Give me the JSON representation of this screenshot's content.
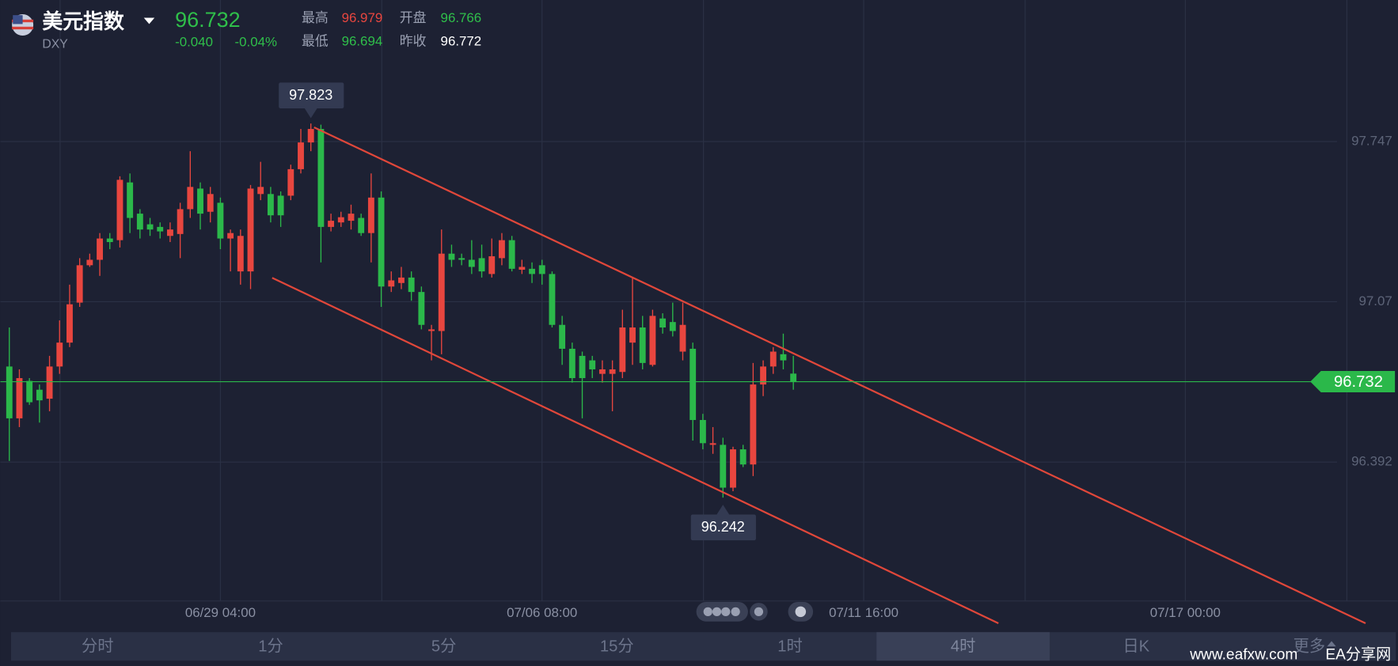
{
  "header": {
    "name": "美元指数",
    "symbol": "DXY",
    "change": "-0.040",
    "change_pct": "-0.04%",
    "high_label": "最高",
    "high": "96.979",
    "open_label": "开盘",
    "open": "96.766",
    "low_label": "最低",
    "low": "96.694",
    "prev_label": "昨收",
    "prev": "96.772"
  },
  "chart_data": {
    "type": "candlestick",
    "x": [
      0,
      1,
      2,
      3,
      4,
      5,
      6,
      7,
      8,
      9,
      10,
      11,
      12,
      13,
      14,
      15,
      16,
      17,
      18,
      19,
      20,
      21,
      22,
      23,
      24,
      25,
      26,
      27,
      28,
      29,
      30,
      31,
      32,
      33,
      34,
      35,
      36,
      37,
      38,
      39,
      40,
      41,
      42,
      43,
      44,
      45,
      46,
      47,
      48,
      49,
      50,
      51,
      52,
      53,
      54,
      55,
      56,
      57,
      58,
      59,
      60,
      61,
      62,
      63,
      64,
      65,
      66,
      67,
      68,
      69,
      70,
      71,
      72,
      73,
      74,
      75,
      76,
      77,
      78
    ],
    "open": [
      96.796,
      96.577,
      96.735,
      96.698,
      96.66,
      96.796,
      96.897,
      97.066,
      97.224,
      97.247,
      97.337,
      97.33,
      97.574,
      97.442,
      97.397,
      97.386,
      97.348,
      97.356,
      97.461,
      97.548,
      97.45,
      97.488,
      97.337,
      97.198,
      97.198,
      97.525,
      97.525,
      97.518,
      97.518,
      97.63,
      97.743,
      97.8,
      97.386,
      97.405,
      97.412,
      97.424,
      97.36,
      97.51,
      97.134,
      97.149,
      97.172,
      97.111,
      96.946,
      96.946,
      97.273,
      97.254,
      97.247,
      97.254,
      97.187,
      97.254,
      97.33,
      97.205,
      97.209,
      97.224,
      97.187,
      96.972,
      96.871,
      96.841,
      96.822,
      96.765,
      96.765,
      96.773,
      96.897,
      96.961,
      96.803,
      96.999,
      96.984,
      96.859,
      96.871,
      96.57,
      96.465,
      96.465,
      96.284,
      96.446,
      96.382,
      96.72,
      96.796,
      96.848,
      96.766
    ],
    "high": [
      96.961,
      96.784,
      96.747,
      96.72,
      96.841,
      96.991,
      97.142,
      97.254,
      97.273,
      97.36,
      97.36,
      97.6,
      97.612,
      97.461,
      97.424,
      97.405,
      97.405,
      97.488,
      97.706,
      97.574,
      97.555,
      97.51,
      97.375,
      97.375,
      97.563,
      97.661,
      97.555,
      97.536,
      97.649,
      97.8,
      97.823,
      97.818,
      97.442,
      97.45,
      97.48,
      97.442,
      97.612,
      97.536,
      97.198,
      97.217,
      97.198,
      97.134,
      96.972,
      97.375,
      97.311,
      97.273,
      97.33,
      97.311,
      97.337,
      97.36,
      97.348,
      97.247,
      97.236,
      97.247,
      97.198,
      97.01,
      96.897,
      96.859,
      96.841,
      96.822,
      96.822,
      97.036,
      97.172,
      97.01,
      97.036,
      97.021,
      97.066,
      97.066,
      96.897,
      96.596,
      96.54,
      96.495,
      96.457,
      96.465,
      96.811,
      96.822,
      96.878,
      96.935,
      96.841
    ],
    "low": [
      96.397,
      96.54,
      96.634,
      96.559,
      96.607,
      96.765,
      96.878,
      97.048,
      97.217,
      97.179,
      97.292,
      97.299,
      97.36,
      97.337,
      97.348,
      97.337,
      97.322,
      97.254,
      97.424,
      97.375,
      97.405,
      97.292,
      97.198,
      97.142,
      97.123,
      97.499,
      97.405,
      97.386,
      97.499,
      97.612,
      97.706,
      97.236,
      97.367,
      97.386,
      97.375,
      97.348,
      97.236,
      97.048,
      97.111,
      97.123,
      97.074,
      96.953,
      96.822,
      96.848,
      97.217,
      97.224,
      97.187,
      97.172,
      97.172,
      97.224,
      97.198,
      97.187,
      97.149,
      97.142,
      96.961,
      96.803,
      96.728,
      96.577,
      96.747,
      96.728,
      96.607,
      96.747,
      96.803,
      96.784,
      96.796,
      96.935,
      96.923,
      96.822,
      96.483,
      96.446,
      96.427,
      96.242,
      96.269,
      96.371,
      96.333,
      96.671,
      96.765,
      96.784,
      96.698
    ],
    "close": [
      96.577,
      96.747,
      96.645,
      96.653,
      96.796,
      96.897,
      97.059,
      97.224,
      97.247,
      97.337,
      97.322,
      97.585,
      97.424,
      97.375,
      97.375,
      97.367,
      97.375,
      97.461,
      97.555,
      97.442,
      97.525,
      97.337,
      97.36,
      97.348,
      97.548,
      97.555,
      97.435,
      97.435,
      97.63,
      97.743,
      97.8,
      97.386,
      97.412,
      97.427,
      97.442,
      97.36,
      97.51,
      97.134,
      97.16,
      97.172,
      97.111,
      96.972,
      96.953,
      97.273,
      97.247,
      97.247,
      97.217,
      97.198,
      97.262,
      97.33,
      97.209,
      97.217,
      97.187,
      97.187,
      96.972,
      96.871,
      96.747,
      96.747,
      96.784,
      96.784,
      96.784,
      96.961,
      96.961,
      96.811,
      97.01,
      96.961,
      96.946,
      96.972,
      96.57,
      96.472,
      96.472,
      96.284,
      96.446,
      96.382,
      96.72,
      96.796,
      96.859,
      96.822,
      96.732
    ],
    "up_color": "#e8463f",
    "down_color": "#2bb84a",
    "xlim": [
      -0.89,
      138.12
    ],
    "xticks": [
      {
        "value": 21,
        "label": "06/29 04:00"
      },
      {
        "value": 53,
        "label": "07/06 08:00"
      },
      {
        "value": 85,
        "label": "07/11 16:00"
      },
      {
        "value": 117,
        "label": "07/17 00:00"
      }
    ],
    "ylim": [
      95.805,
      98.345
    ],
    "yticks": [
      97.747,
      97.07,
      96.392
    ],
    "grid": true,
    "last_price": 96.732,
    "annotations": [
      {
        "x": 30,
        "value": 97.823,
        "side": "above"
      },
      {
        "x": 71,
        "value": 96.242,
        "side": "below"
      }
    ]
  },
  "tabs": [
    "分时",
    "1分",
    "5分",
    "15分",
    "1时",
    "4时",
    "日K",
    "更多"
  ],
  "active_tab": 5,
  "watermark": "www.eafxw.com",
  "watermark_name": "EA分享网"
}
